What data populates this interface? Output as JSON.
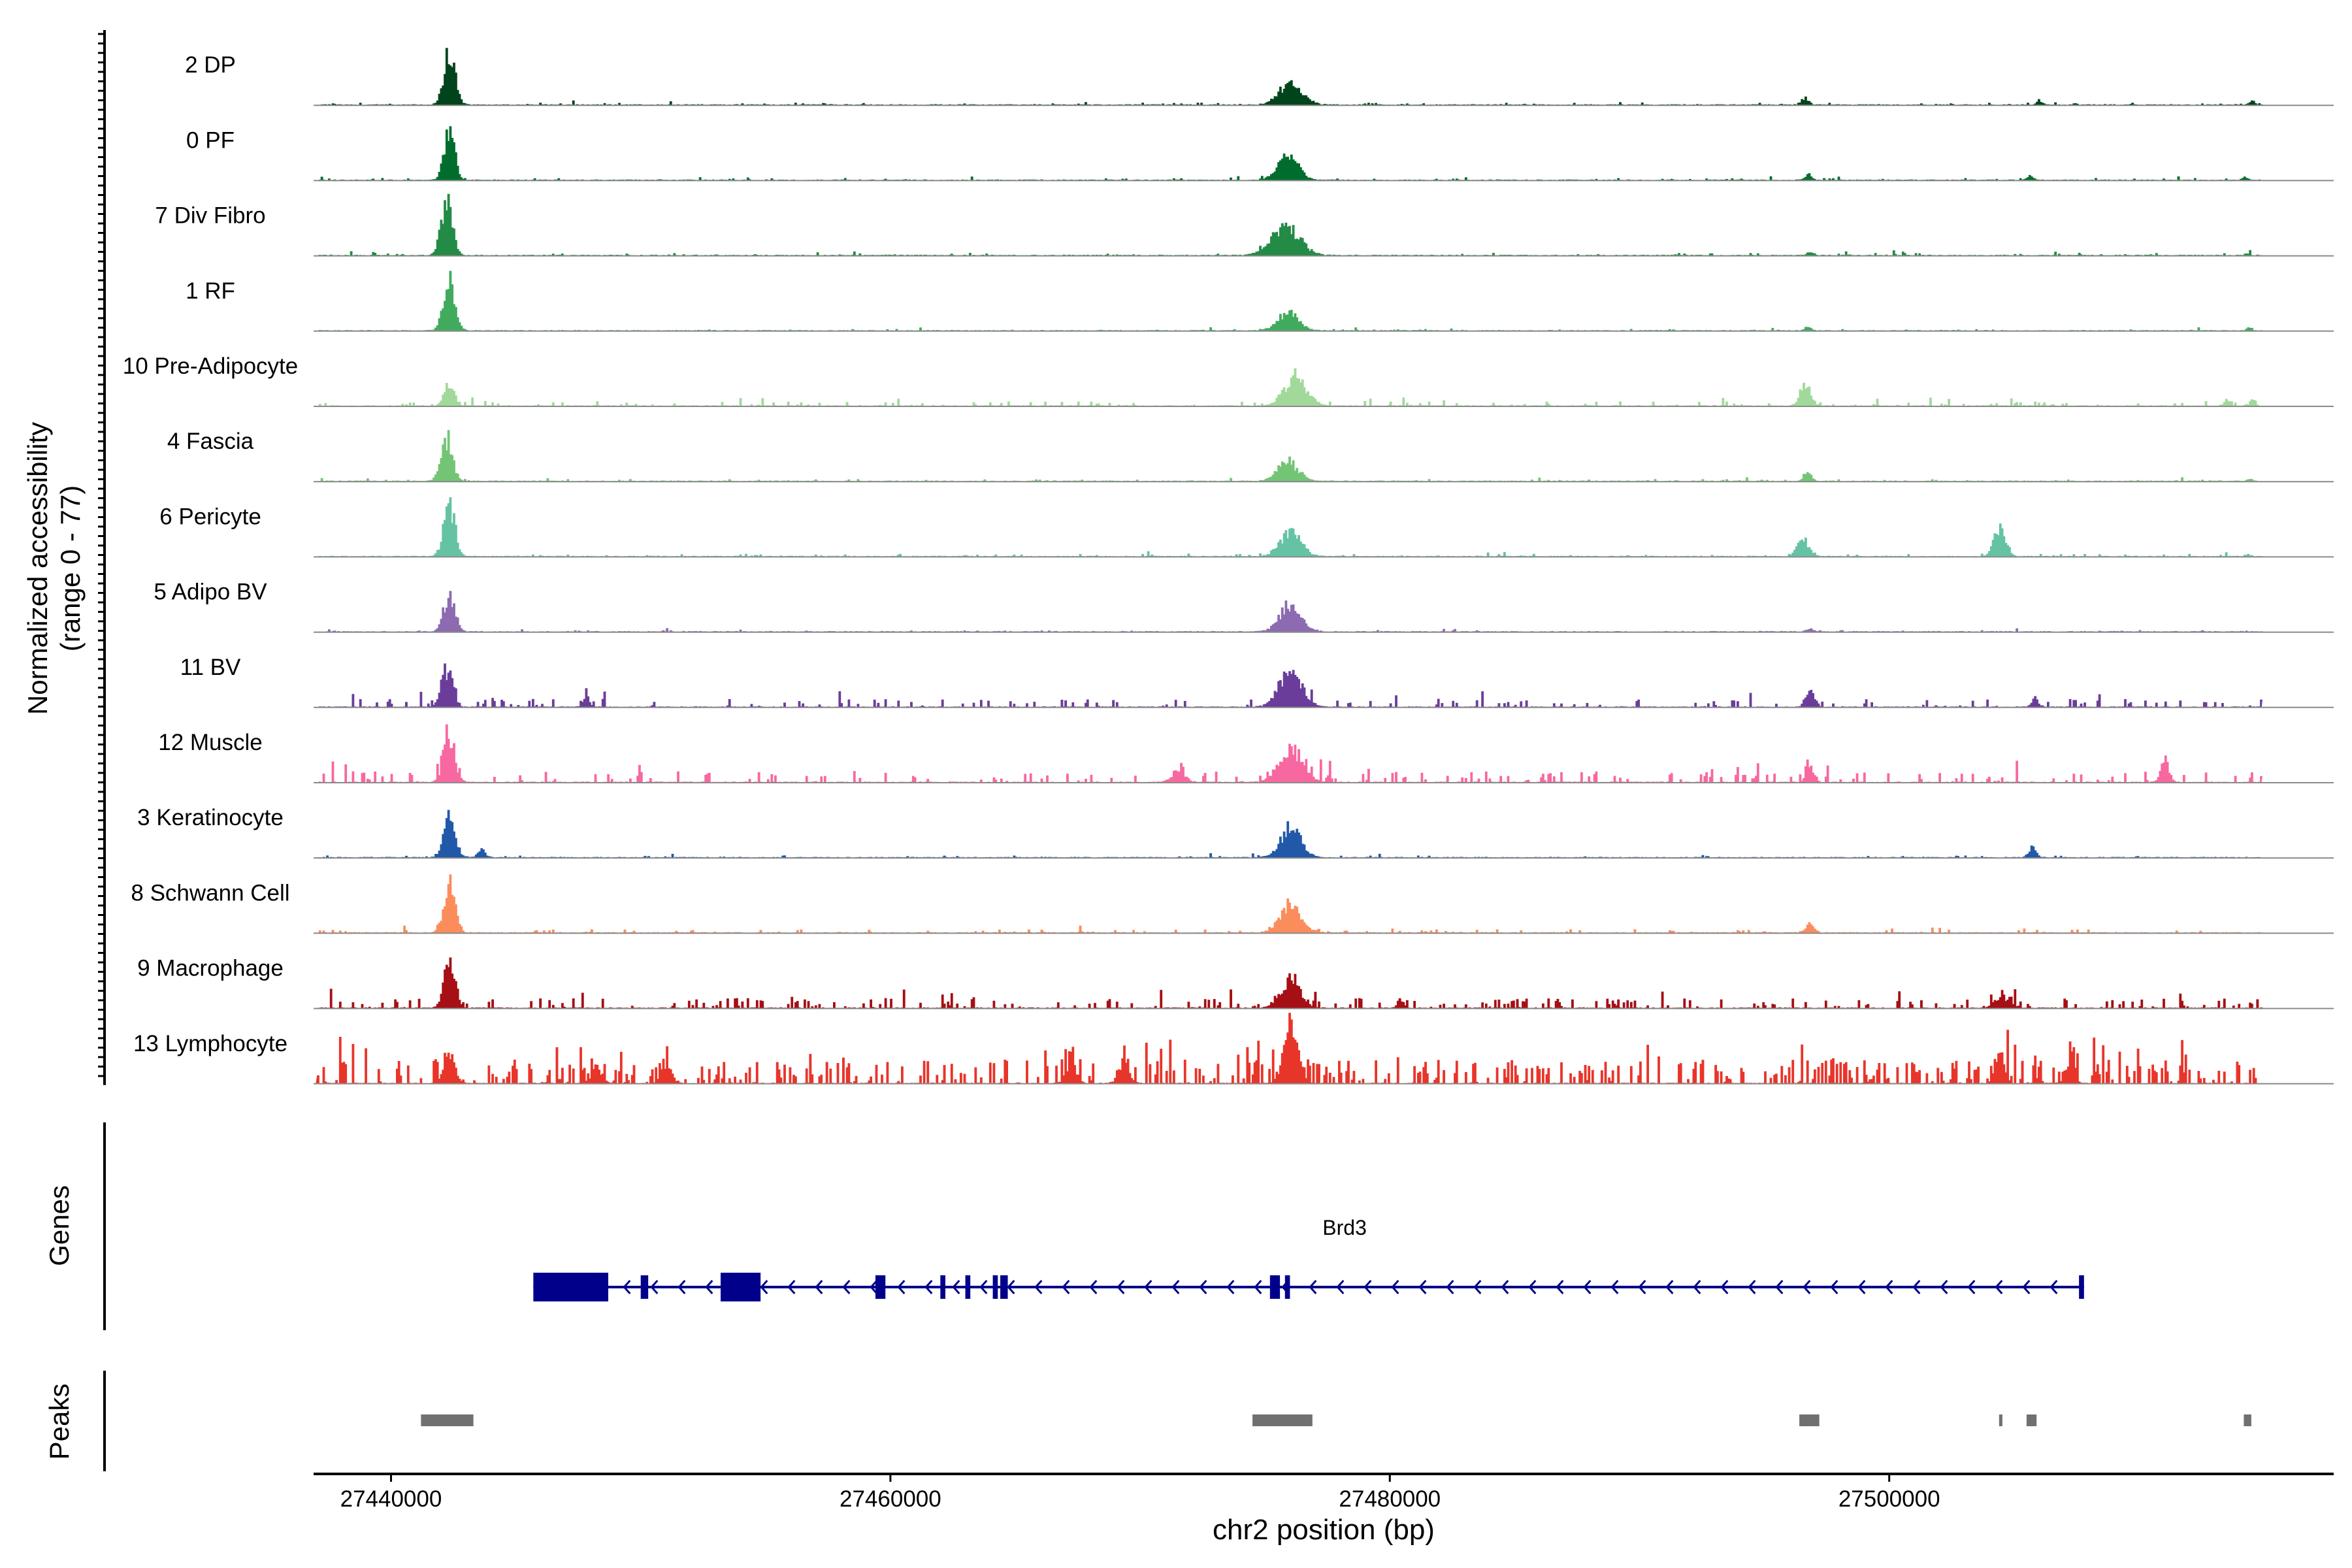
{
  "chart_data": {
    "type": "area",
    "title": "",
    "ylabel": {
      "line1": "Normalized accessibility",
      "line2": "(range 0 - 77)"
    },
    "ylim": [
      0,
      77
    ],
    "xlabel": "chr2 position (bp)",
    "xlim": [
      27436900,
      27517800
    ],
    "x_ticks": [
      27440000,
      27460000,
      27480000,
      27500000
    ],
    "x_tick_labels": [
      "27440000",
      "27460000",
      "27480000",
      "27500000"
    ],
    "tracks": [
      {
        "name": "2 DP",
        "color": "#00441B",
        "seed": 11,
        "noise": 2.5,
        "density": 0.1,
        "peaks": [
          [
            27442300,
            70,
            220
          ],
          [
            27476000,
            30,
            450
          ],
          [
            27496600,
            10,
            130
          ],
          [
            27506000,
            6,
            120
          ],
          [
            27514500,
            5,
            100
          ]
        ]
      },
      {
        "name": "0 PF",
        "color": "#006D2C",
        "seed": 22,
        "noise": 2.5,
        "density": 0.1,
        "peaks": [
          [
            27442300,
            72,
            200
          ],
          [
            27475900,
            34,
            400
          ],
          [
            27496700,
            7,
            130
          ],
          [
            27505600,
            6,
            110
          ],
          [
            27514200,
            4,
            100
          ]
        ]
      },
      {
        "name": "7 Div Fibro",
        "color": "#238B45",
        "seed": 33,
        "noise": 3,
        "density": 0.12,
        "peaks": [
          [
            27442200,
            74,
            220
          ],
          [
            27475800,
            40,
            550
          ],
          [
            27496800,
            4,
            130
          ],
          [
            27514300,
            3,
            100
          ]
        ]
      },
      {
        "name": "1 RF",
        "color": "#41AB5D",
        "seed": 44,
        "noise": 2,
        "density": 0.08,
        "peaks": [
          [
            27442300,
            68,
            220
          ],
          [
            27475900,
            24,
            420
          ],
          [
            27496700,
            5,
            130
          ],
          [
            27514400,
            4,
            100
          ]
        ]
      },
      {
        "name": "10 Pre-Adipocyte",
        "color": "#A1D99B",
        "seed": 55,
        "noise": 5,
        "density": 0.14,
        "peaks": [
          [
            27442300,
            28,
            200
          ],
          [
            27476200,
            38,
            450
          ],
          [
            27496600,
            32,
            200
          ],
          [
            27513500,
            8,
            120
          ],
          [
            27514500,
            8,
            100
          ]
        ]
      },
      {
        "name": "4 Fascia",
        "color": "#74C476",
        "seed": 66,
        "noise": 2.5,
        "density": 0.09,
        "peaks": [
          [
            27442200,
            60,
            220
          ],
          [
            27475900,
            26,
            420
          ],
          [
            27496700,
            12,
            140
          ],
          [
            27514400,
            3,
            100
          ]
        ]
      },
      {
        "name": "6 Pericyte",
        "color": "#66C2A4",
        "seed": 77,
        "noise": 3,
        "density": 0.11,
        "peaks": [
          [
            27442300,
            70,
            220
          ],
          [
            27476000,
            32,
            420
          ],
          [
            27496500,
            24,
            220
          ],
          [
            27504400,
            40,
            230
          ],
          [
            27514300,
            3,
            100
          ]
        ]
      },
      {
        "name": "5 Adipo BV",
        "color": "#8C6BB1",
        "seed": 88,
        "noise": 2,
        "density": 0.07,
        "peaks": [
          [
            27442300,
            50,
            220
          ],
          [
            27476000,
            38,
            420
          ],
          [
            27496800,
            4,
            130
          ]
        ]
      },
      {
        "name": "11 BV",
        "color": "#6A3D9A",
        "seed": 99,
        "noise": 9,
        "density": 0.16,
        "peaks": [
          [
            27442200,
            52,
            220
          ],
          [
            27476000,
            48,
            450
          ],
          [
            27496800,
            28,
            170
          ],
          [
            27447800,
            16,
            120
          ],
          [
            27505800,
            14,
            120
          ]
        ]
      },
      {
        "name": "12 Muscle",
        "color": "#F768A1",
        "seed": 111,
        "noise": 12,
        "density": 0.2,
        "peaks": [
          [
            27442300,
            62,
            220
          ],
          [
            27476000,
            48,
            450
          ],
          [
            27496800,
            20,
            150
          ],
          [
            27511000,
            30,
            160
          ],
          [
            27471500,
            16,
            250
          ]
        ]
      },
      {
        "name": "3 Keratinocyte",
        "color": "#2158A8",
        "seed": 122,
        "noise": 2.5,
        "density": 0.09,
        "peaks": [
          [
            27442300,
            62,
            220
          ],
          [
            27476000,
            40,
            400
          ],
          [
            27505700,
            14,
            140
          ],
          [
            27443600,
            10,
            150
          ]
        ]
      },
      {
        "name": "8 Schwann Cell",
        "color": "#FB8D5C",
        "seed": 133,
        "noise": 4,
        "density": 0.12,
        "peaks": [
          [
            27442300,
            66,
            220
          ],
          [
            27476000,
            40,
            400
          ],
          [
            27496800,
            14,
            150
          ]
        ]
      },
      {
        "name": "9 Macrophage",
        "color": "#A50F15",
        "seed": 144,
        "noise": 11,
        "density": 0.22,
        "peaks": [
          [
            27442300,
            76,
            200
          ],
          [
            27476000,
            38,
            400
          ],
          [
            27480400,
            12,
            120
          ],
          [
            27504500,
            14,
            300
          ]
        ]
      },
      {
        "name": "13 Lymphocyte",
        "color": "#E8352A",
        "seed": 155,
        "noise": 26,
        "density": 0.36,
        "peaks": [
          [
            27442300,
            38,
            220
          ],
          [
            27476000,
            74,
            280
          ],
          [
            27504400,
            46,
            170
          ],
          [
            27507200,
            30,
            170
          ],
          [
            27448200,
            22,
            200
          ],
          [
            27451000,
            26,
            200
          ],
          [
            27467200,
            28,
            200
          ],
          [
            27469300,
            26,
            200
          ]
        ]
      }
    ],
    "genes": {
      "label": "Genes",
      "gene_name": "Brd3",
      "color": "#00008B",
      "start": 27445700,
      "end": 27507800,
      "strand": "-",
      "exons": [
        [
          27445700,
          27448700,
          true
        ],
        [
          27453200,
          27454800,
          true
        ],
        [
          27450000,
          27450300,
          false
        ],
        [
          27459400,
          27459800,
          false
        ],
        [
          27462000,
          27462200,
          false
        ],
        [
          27463000,
          27463200,
          false
        ],
        [
          27464100,
          27464300,
          false
        ],
        [
          27464400,
          27464700,
          false
        ],
        [
          27475200,
          27475600,
          false
        ],
        [
          27475800,
          27476000,
          false
        ],
        [
          27507600,
          27507800,
          false
        ]
      ]
    },
    "peaks_track": {
      "label": "Peaks",
      "color": "#707070",
      "regions": [
        [
          27441200,
          27443300
        ],
        [
          27474500,
          27476900
        ],
        [
          27496400,
          27497200
        ],
        [
          27504400,
          27504500
        ],
        [
          27505500,
          27505900
        ],
        [
          27514200,
          27514500
        ]
      ]
    }
  }
}
